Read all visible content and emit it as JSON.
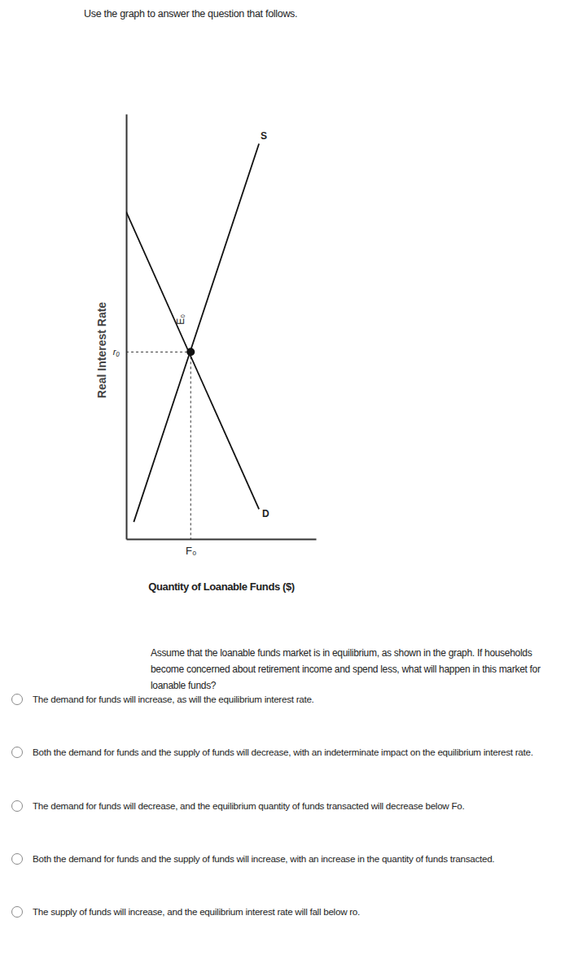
{
  "chart_data": {
    "type": "line",
    "x_label": "Quantity of Loanable Funds ($)",
    "y_label": "Real Interest Rate",
    "xlim": [
      0,
      100
    ],
    "ylim": [
      0,
      100
    ],
    "xticks": [
      {
        "value": 34,
        "label": "F₀"
      }
    ],
    "yticks": [
      {
        "value": 44,
        "label": "r₀"
      }
    ],
    "tick_labels": true,
    "grid": false,
    "series": [
      {
        "name": "S",
        "color": "#111111",
        "x": [
          4,
          70
        ],
        "values": [
          4,
          93
        ]
      },
      {
        "name": "D",
        "color": "#111111",
        "x": [
          0,
          70
        ],
        "values": [
          77,
          7
        ]
      }
    ],
    "equilibrium": {
      "label": "E₀",
      "x": 34,
      "y": 44
    }
  },
  "page": {
    "instruction": "Use the graph to answer the question that follows.",
    "question": "Assume that the loanable funds market is in equilibrium, as shown in the graph. If households become concerned about retirement income and spend less, what will happen in this market for loanable funds?",
    "options": [
      "The demand for funds will increase, as will the equilibrium interest rate.",
      "Both the demand for funds and the supply of funds will decrease, with an indeterminate impact on the equilibrium interest rate.",
      "The demand for funds will decrease, and the equilibrium quantity of funds transacted will decrease below Fo.",
      "Both the demand for funds and the supply of funds will increase, with an increase in the quantity of funds transacted.",
      "The supply of funds will increase, and the equilibrium interest rate will fall below ro."
    ]
  }
}
